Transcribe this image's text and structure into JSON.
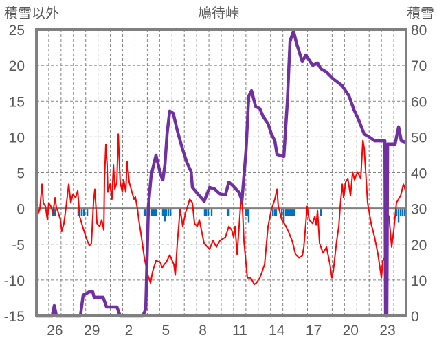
{
  "chart_data": {
    "type": "line",
    "title": "鳩待峠",
    "ylabel_left": "積雪以外",
    "ylabel_right": "積雪",
    "xlabel": "",
    "x_unit": "days from start of first day shown (day 25)",
    "xlim": [
      0,
      30
    ],
    "ylim_left": [
      -15,
      25
    ],
    "ylim_right": [
      0,
      80
    ],
    "yticks_left": [
      "25",
      "20",
      "15",
      "10",
      "5",
      "0",
      "-5",
      "-10",
      "-15"
    ],
    "yticks_right": [
      "80",
      "70",
      "60",
      "50",
      "40",
      "30",
      "20",
      "10",
      "0"
    ],
    "xtick_labels": [
      {
        "t": 1.5,
        "label": "26"
      },
      {
        "t": 4.5,
        "label": "29"
      },
      {
        "t": 7.5,
        "label": "2"
      },
      {
        "t": 10.5,
        "label": "5"
      },
      {
        "t": 13.5,
        "label": "8"
      },
      {
        "t": 16.5,
        "label": "11"
      },
      {
        "t": 19.5,
        "label": "14"
      },
      {
        "t": 22.5,
        "label": "17"
      },
      {
        "t": 25.5,
        "label": "20"
      },
      {
        "t": 28.5,
        "label": "23"
      }
    ],
    "grid": true,
    "colors": {
      "temperature": "#ff0000",
      "snow_depth": "#7030a0",
      "precip": "#0070c0",
      "axis": "#808080"
    },
    "series": {
      "temperature": [
        [
          0.06,
          0.7
        ],
        [
          0.17,
          -0.6
        ],
        [
          0.28,
          -0.1
        ],
        [
          0.45,
          3.4
        ],
        [
          0.56,
          0.8
        ],
        [
          0.73,
          0.3
        ],
        [
          0.89,
          -1.6
        ],
        [
          1.0,
          0.8
        ],
        [
          1.17,
          0.3
        ],
        [
          1.34,
          -0.6
        ],
        [
          1.51,
          1.5
        ],
        [
          1.62,
          0.1
        ],
        [
          1.78,
          -0.6
        ],
        [
          1.95,
          -1.6
        ],
        [
          2.06,
          -3.2
        ],
        [
          2.23,
          -2.1
        ],
        [
          2.4,
          0.1
        ],
        [
          2.62,
          3.4
        ],
        [
          2.79,
          0.8
        ],
        [
          2.96,
          2.0
        ],
        [
          3.18,
          1.5
        ],
        [
          3.35,
          2.5
        ],
        [
          3.51,
          -1.1
        ],
        [
          3.74,
          -2.5
        ],
        [
          4.02,
          -4.0
        ],
        [
          4.29,
          -5.2
        ],
        [
          4.46,
          -4.9
        ],
        [
          4.63,
          0.8
        ],
        [
          4.74,
          2.7
        ],
        [
          4.91,
          -2.1
        ],
        [
          5.13,
          -2.5
        ],
        [
          5.3,
          -1.6
        ],
        [
          5.47,
          -3.0
        ],
        [
          5.52,
          3.9
        ],
        [
          5.63,
          9.0
        ],
        [
          5.74,
          6.1
        ],
        [
          5.8,
          2.3
        ],
        [
          5.97,
          3.4
        ],
        [
          6.13,
          1.3
        ],
        [
          6.25,
          6.1
        ],
        [
          6.36,
          2.7
        ],
        [
          6.53,
          3.7
        ],
        [
          6.64,
          10.4
        ],
        [
          6.8,
          3.7
        ],
        [
          6.97,
          2.3
        ],
        [
          7.08,
          4.0
        ],
        [
          7.25,
          2.3
        ],
        [
          7.36,
          6.6
        ],
        [
          7.53,
          3.7
        ],
        [
          7.75,
          2.3
        ],
        [
          7.92,
          1.3
        ],
        [
          8.03,
          1.6
        ],
        [
          8.2,
          -0.1
        ],
        [
          8.31,
          -1.6
        ],
        [
          8.48,
          -3.5
        ],
        [
          8.76,
          -6.9
        ],
        [
          9.04,
          -9.3
        ],
        [
          9.26,
          -10.4
        ],
        [
          9.43,
          -8.8
        ],
        [
          9.7,
          -7.3
        ],
        [
          10.04,
          -7.5
        ],
        [
          10.21,
          -8.3
        ],
        [
          10.37,
          -7.8
        ],
        [
          10.54,
          -7.5
        ],
        [
          10.82,
          -6.5
        ],
        [
          11.15,
          -7.8
        ],
        [
          11.27,
          -9.3
        ],
        [
          11.43,
          -4.9
        ],
        [
          11.66,
          -0.1
        ],
        [
          11.88,
          -2.5
        ],
        [
          12.1,
          -0.6
        ],
        [
          12.27,
          0.3
        ],
        [
          12.44,
          1.3
        ],
        [
          12.66,
          0.8
        ],
        [
          12.83,
          -2.1
        ],
        [
          13.05,
          -2.5
        ],
        [
          13.22,
          -1.6
        ],
        [
          13.61,
          -4.9
        ],
        [
          14.05,
          -5.7
        ],
        [
          14.33,
          -4.5
        ],
        [
          14.61,
          -5.4
        ],
        [
          14.89,
          -4.5
        ],
        [
          15.34,
          -4.0
        ],
        [
          15.62,
          -2.5
        ],
        [
          15.84,
          -3.0
        ],
        [
          16.01,
          -4.0
        ],
        [
          16.12,
          -2.5
        ],
        [
          16.29,
          -6.4
        ],
        [
          16.45,
          -2.5
        ],
        [
          16.56,
          0.3
        ],
        [
          16.68,
          1.8
        ],
        [
          16.84,
          -4.5
        ],
        [
          17.12,
          -9.7
        ],
        [
          17.4,
          -9.7
        ],
        [
          17.68,
          -10.6
        ],
        [
          17.85,
          -10.4
        ],
        [
          18.13,
          -9.7
        ],
        [
          18.24,
          -9.2
        ],
        [
          18.52,
          -7.8
        ],
        [
          18.8,
          -2.5
        ],
        [
          19.07,
          -0.1
        ],
        [
          19.35,
          1.3
        ],
        [
          19.52,
          2.7
        ],
        [
          19.63,
          0.3
        ],
        [
          19.91,
          -1.6
        ],
        [
          20.19,
          -2.3
        ],
        [
          20.47,
          -3.3
        ],
        [
          20.75,
          -4.5
        ],
        [
          21.03,
          -6.4
        ],
        [
          21.31,
          -6.9
        ],
        [
          21.58,
          -6.6
        ],
        [
          21.7,
          -5.4
        ],
        [
          21.86,
          -2.1
        ],
        [
          21.97,
          0.3
        ],
        [
          22.14,
          -1.6
        ],
        [
          22.42,
          -2.1
        ],
        [
          22.59,
          -1.1
        ],
        [
          22.7,
          -2.3
        ],
        [
          22.81,
          -0.3
        ],
        [
          22.98,
          -4.9
        ],
        [
          23.26,
          -6.2
        ],
        [
          23.54,
          -5.4
        ],
        [
          23.82,
          -7.8
        ],
        [
          23.98,
          -9.7
        ],
        [
          24.09,
          -8.8
        ],
        [
          24.37,
          -4.5
        ],
        [
          24.54,
          -2.5
        ],
        [
          24.65,
          0.3
        ],
        [
          24.82,
          3.4
        ],
        [
          24.93,
          1.5
        ],
        [
          25.1,
          3.7
        ],
        [
          25.27,
          4.2
        ],
        [
          25.49,
          1.8
        ],
        [
          25.66,
          5.1
        ],
        [
          25.82,
          4.0
        ],
        [
          26.05,
          5.1
        ],
        [
          26.32,
          4.2
        ],
        [
          26.49,
          9.5
        ],
        [
          26.6,
          8.5
        ],
        [
          26.88,
          0.8
        ],
        [
          27.16,
          -2.1
        ],
        [
          27.44,
          -4.0
        ],
        [
          27.72,
          -6.4
        ],
        [
          28.0,
          -9.7
        ],
        [
          28.11,
          -7.3
        ],
        [
          28.28,
          -6.8
        ],
        [
          28.44,
          -0.6
        ],
        [
          28.61,
          -1.1
        ],
        [
          28.83,
          -5.4
        ],
        [
          29.0,
          -3.0
        ],
        [
          29.22,
          0.8
        ],
        [
          29.56,
          1.8
        ],
        [
          29.78,
          3.4
        ],
        [
          30.0,
          2.3
        ]
      ],
      "snow_depth": [
        [
          0,
          0
        ],
        [
          1.28,
          0
        ],
        [
          1.45,
          2.9
        ],
        [
          1.62,
          0
        ],
        [
          3.57,
          0
        ],
        [
          3.79,
          5.8
        ],
        [
          4.29,
          6.7
        ],
        [
          4.57,
          6.7
        ],
        [
          4.68,
          5.2
        ],
        [
          5.41,
          5.2
        ],
        [
          5.69,
          2.5
        ],
        [
          6.53,
          2.5
        ],
        [
          6.8,
          0
        ],
        [
          8.64,
          0
        ],
        [
          8.87,
          1.9
        ],
        [
          9.09,
          30.7
        ],
        [
          9.31,
          39.3
        ],
        [
          9.7,
          44.9
        ],
        [
          10.09,
          39.3
        ],
        [
          10.26,
          38.0
        ],
        [
          10.43,
          42.2
        ],
        [
          10.6,
          50.8
        ],
        [
          10.82,
          57.2
        ],
        [
          11.1,
          56.6
        ],
        [
          11.43,
          51.8
        ],
        [
          11.82,
          47.0
        ],
        [
          12.21,
          42.8
        ],
        [
          12.55,
          40.3
        ],
        [
          12.66,
          35.9
        ],
        [
          13.22,
          33.6
        ],
        [
          13.61,
          32.0
        ],
        [
          14.05,
          35.9
        ],
        [
          14.45,
          35.5
        ],
        [
          14.89,
          34.1
        ],
        [
          15.34,
          33.8
        ],
        [
          15.62,
          37.4
        ],
        [
          16.01,
          36.1
        ],
        [
          16.45,
          34.5
        ],
        [
          16.68,
          32.2
        ],
        [
          17.01,
          46.0
        ],
        [
          17.23,
          61.4
        ],
        [
          17.46,
          62.9
        ],
        [
          17.79,
          58.5
        ],
        [
          18.13,
          57.9
        ],
        [
          18.41,
          55.6
        ],
        [
          18.8,
          53.7
        ],
        [
          19.07,
          50.8
        ],
        [
          19.35,
          48.9
        ],
        [
          19.52,
          45.1
        ],
        [
          20.08,
          44.5
        ],
        [
          20.36,
          59.5
        ],
        [
          20.58,
          76.7
        ],
        [
          20.86,
          79.6
        ],
        [
          21.14,
          75.8
        ],
        [
          21.58,
          71.0
        ],
        [
          21.86,
          72.9
        ],
        [
          22.42,
          70.0
        ],
        [
          22.81,
          70.6
        ],
        [
          23.09,
          69.0
        ],
        [
          23.54,
          68.1
        ],
        [
          24.09,
          66.2
        ],
        [
          24.82,
          64.3
        ],
        [
          25.38,
          61.4
        ],
        [
          25.77,
          57.6
        ],
        [
          26.16,
          54.7
        ],
        [
          26.6,
          50.8
        ],
        [
          27.05,
          49.9
        ],
        [
          27.44,
          48.9
        ],
        [
          28.28,
          48.9
        ],
        [
          28.33,
          0
        ],
        [
          28.44,
          0
        ],
        [
          28.5,
          48.0
        ],
        [
          29.11,
          48.0
        ],
        [
          29.39,
          52.8
        ],
        [
          29.61,
          48.9
        ],
        [
          30.0,
          48.5
        ]
      ],
      "precip": [
        [
          1.34,
          -1
        ],
        [
          1.51,
          -1
        ],
        [
          3.4,
          -1
        ],
        [
          3.51,
          -1
        ],
        [
          3.68,
          -1
        ],
        [
          3.85,
          -1
        ],
        [
          4.13,
          -1
        ],
        [
          8.76,
          -1
        ],
        [
          8.87,
          -1
        ],
        [
          9.04,
          -3
        ],
        [
          9.15,
          -1
        ],
        [
          9.37,
          -1
        ],
        [
          9.54,
          -1
        ],
        [
          9.7,
          -1
        ],
        [
          10.26,
          -1
        ],
        [
          10.43,
          -1.8
        ],
        [
          10.54,
          -1
        ],
        [
          10.71,
          -1
        ],
        [
          10.88,
          -1
        ],
        [
          13.66,
          -1
        ],
        [
          13.78,
          -1
        ],
        [
          13.94,
          -1
        ],
        [
          14.22,
          -1
        ],
        [
          15.51,
          -1
        ],
        [
          15.62,
          -1
        ],
        [
          17.01,
          -1
        ],
        [
          17.12,
          -1
        ],
        [
          17.23,
          -2
        ],
        [
          19.19,
          -1
        ],
        [
          19.35,
          -1
        ],
        [
          19.46,
          -1
        ],
        [
          19.91,
          -1
        ],
        [
          20.08,
          -2
        ],
        [
          20.25,
          -1
        ],
        [
          20.41,
          -1
        ],
        [
          20.58,
          -1
        ],
        [
          20.75,
          -1
        ],
        [
          20.91,
          -1
        ],
        [
          21.92,
          -1
        ],
        [
          23.09,
          -1
        ],
        [
          29.22,
          -1
        ],
        [
          29.39,
          -2
        ],
        [
          29.56,
          -1
        ],
        [
          29.72,
          -1
        ],
        [
          29.89,
          -1
        ]
      ]
    }
  }
}
